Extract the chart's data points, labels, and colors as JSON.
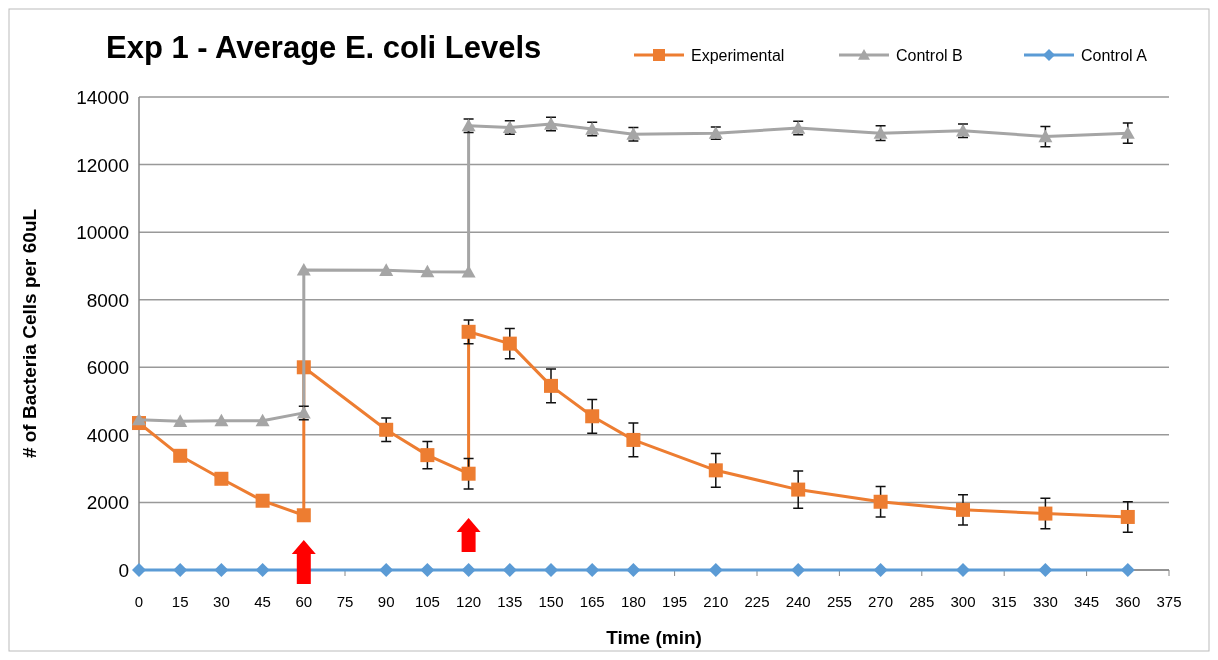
{
  "chart_data": {
    "type": "line",
    "title": "Exp 1 - Average E. coli Levels",
    "xlabel": "Time (min)",
    "ylabel": "# of Bacteria Cells per 60uL",
    "xlim": [
      0,
      375
    ],
    "xticks": [
      0,
      15,
      30,
      45,
      60,
      75,
      90,
      105,
      120,
      135,
      150,
      165,
      180,
      195,
      210,
      225,
      240,
      255,
      270,
      285,
      300,
      315,
      330,
      345,
      360,
      375
    ],
    "ylim": [
      0,
      14000
    ],
    "yticks": [
      0,
      2000,
      4000,
      6000,
      8000,
      10000,
      12000,
      14000
    ],
    "grid": "y",
    "legend": "top right",
    "line_style": "solid",
    "series": [
      {
        "name": "Experimental",
        "color": "#ed7d31",
        "marker": "square",
        "x": [
          0,
          15,
          30,
          45,
          60,
          60,
          90,
          105,
          120,
          120,
          135,
          150,
          165,
          180,
          210,
          240,
          270,
          300,
          330,
          360
        ],
        "values": [
          4350,
          3380,
          2700,
          2050,
          1620,
          6000,
          4150,
          3400,
          2850,
          7050,
          6700,
          5450,
          4550,
          3850,
          2950,
          2380,
          2020,
          1780,
          1670,
          1570
        ],
        "errors": [
          null,
          null,
          null,
          null,
          null,
          null,
          350,
          400,
          450,
          350,
          450,
          500,
          500,
          500,
          500,
          550,
          450,
          450,
          450,
          450
        ]
      },
      {
        "name": "Control B",
        "color": "#a5a5a5",
        "marker": "triangle",
        "x": [
          0,
          15,
          30,
          45,
          60,
          60,
          90,
          105,
          120,
          120,
          135,
          150,
          165,
          180,
          210,
          240,
          270,
          300,
          330,
          360
        ],
        "values": [
          4450,
          4400,
          4420,
          4420,
          4650,
          8880,
          8870,
          8830,
          8820,
          13150,
          13100,
          13200,
          13050,
          12900,
          12930,
          13080,
          12930,
          13000,
          12830,
          12930
        ],
        "errors": [
          null,
          null,
          null,
          null,
          200,
          null,
          null,
          null,
          null,
          200,
          200,
          200,
          200,
          200,
          180,
          200,
          220,
          200,
          300,
          300
        ]
      },
      {
        "name": "Control A",
        "color": "#5b9bd5",
        "marker": "diamond",
        "x": [
          0,
          15,
          30,
          45,
          60,
          90,
          105,
          120,
          135,
          150,
          165,
          180,
          210,
          240,
          270,
          300,
          330,
          360
        ],
        "values": [
          0,
          0,
          0,
          0,
          null,
          0,
          0,
          0,
          0,
          0,
          0,
          0,
          0,
          0,
          0,
          0,
          0,
          0
        ]
      }
    ]
  }
}
